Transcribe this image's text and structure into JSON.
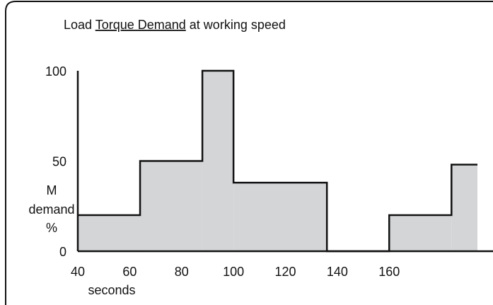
{
  "chart_data": {
    "type": "histogram",
    "title": [
      "Load ",
      "Torque Demand",
      " at working speed"
    ],
    "x_label": "seconds",
    "y_label": [
      "M",
      "demand",
      "%"
    ],
    "bins": [
      40,
      64,
      88,
      100,
      136,
      160,
      184,
      194
    ],
    "values": [
      20,
      50,
      100,
      38,
      0,
      20,
      48
    ],
    "color": "#d4d5d7",
    "xlim": [
      40,
      200
    ],
    "xticks": [
      40,
      60,
      80,
      100,
      120,
      140,
      160
    ],
    "ylim": [
      0,
      100
    ],
    "yticks": [
      0,
      50,
      100
    ],
    "grid": false
  }
}
